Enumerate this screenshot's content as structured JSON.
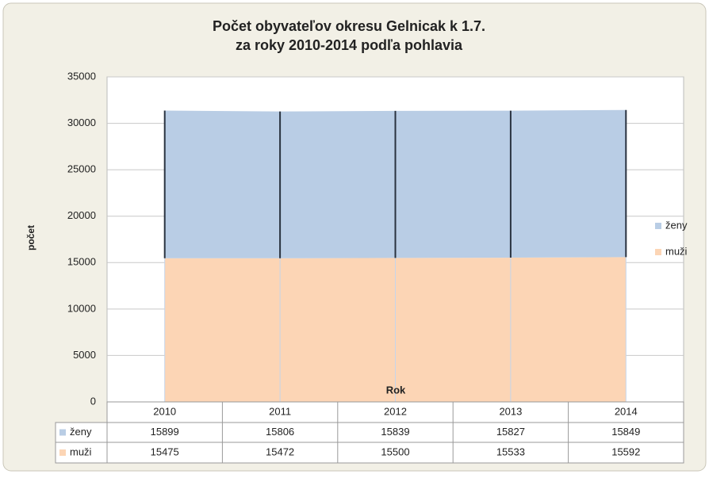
{
  "chart_data": {
    "type": "stacked_area",
    "title": [
      "Počet obyvateľov okresu Gelnicak k 1.7.",
      "za roky 2010-2014 podľa pohlavia"
    ],
    "x_label": "Rok",
    "y_label": "počet",
    "categories": [
      "2010",
      "2011",
      "2012",
      "2013",
      "2014"
    ],
    "series": [
      {
        "name": "ženy",
        "color": "#b9cde5",
        "values": [
          15899,
          15806,
          15839,
          15827,
          15849
        ]
      },
      {
        "name": "muži",
        "color": "#fcd5b5",
        "values": [
          15475,
          15472,
          15500,
          15533,
          15592
        ]
      }
    ],
    "ylim": [
      0,
      35000
    ],
    "yticks": [
      0,
      5000,
      10000,
      15000,
      20000,
      25000,
      30000,
      35000
    ],
    "grid": true,
    "legend": "right",
    "data_table": true
  }
}
